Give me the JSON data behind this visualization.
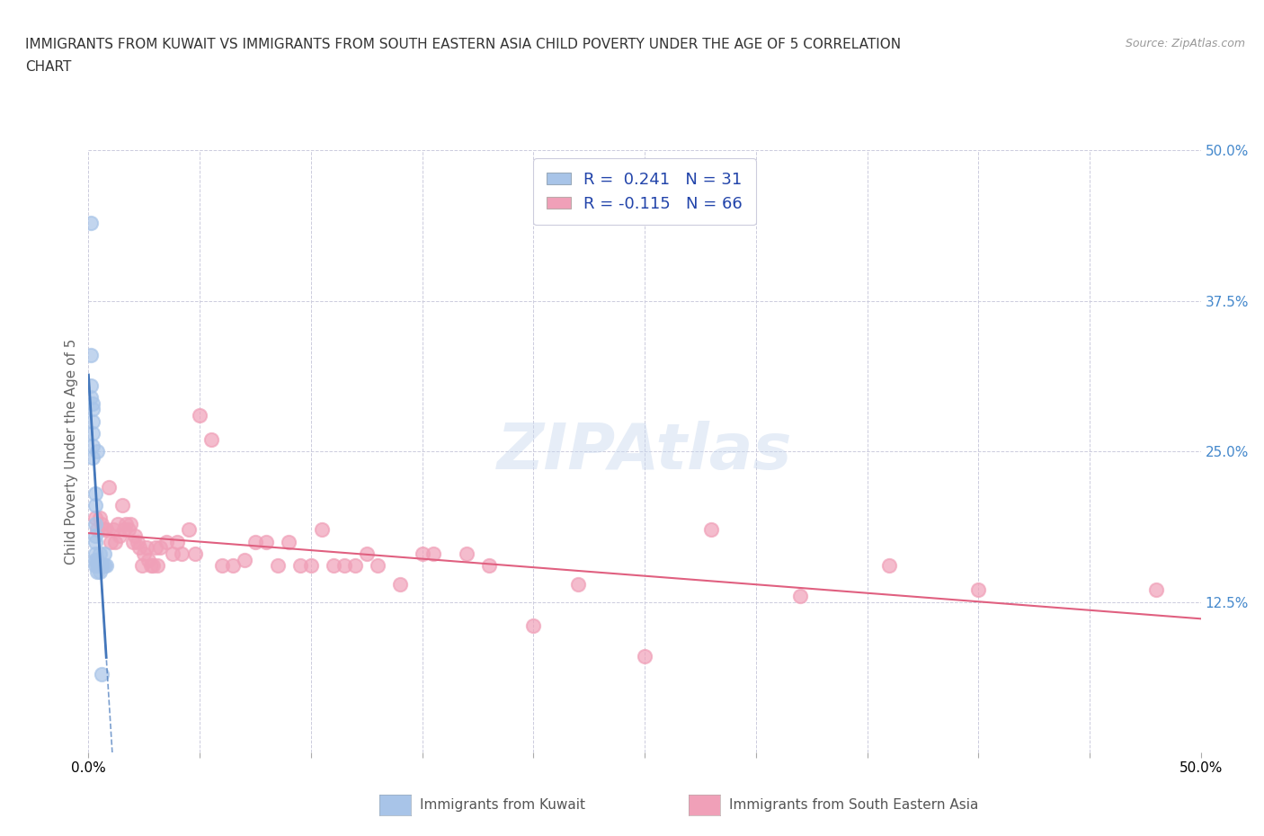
{
  "title_line1": "IMMIGRANTS FROM KUWAIT VS IMMIGRANTS FROM SOUTH EASTERN ASIA CHILD POVERTY UNDER THE AGE OF 5 CORRELATION",
  "title_line2": "CHART",
  "source": "Source: ZipAtlas.com",
  "ylabel": "Child Poverty Under the Age of 5",
  "xlim": [
    0.0,
    0.5
  ],
  "ylim": [
    0.0,
    0.5
  ],
  "r_kuwait": 0.241,
  "n_kuwait": 31,
  "r_sea": -0.115,
  "n_sea": 66,
  "color_kuwait": "#a8c4e8",
  "color_sea": "#f0a0b8",
  "trend_kuwait_color": "#4477bb",
  "trend_sea_color": "#e06080",
  "watermark": "ZIPAtlas",
  "kuwait_points": [
    [
      0.001,
      0.44
    ],
    [
      0.001,
      0.33
    ],
    [
      0.001,
      0.305
    ],
    [
      0.001,
      0.295
    ],
    [
      0.002,
      0.29
    ],
    [
      0.002,
      0.285
    ],
    [
      0.002,
      0.275
    ],
    [
      0.002,
      0.265
    ],
    [
      0.002,
      0.255
    ],
    [
      0.002,
      0.245
    ],
    [
      0.003,
      0.215
    ],
    [
      0.003,
      0.205
    ],
    [
      0.003,
      0.19
    ],
    [
      0.003,
      0.18
    ],
    [
      0.003,
      0.175
    ],
    [
      0.003,
      0.165
    ],
    [
      0.003,
      0.16
    ],
    [
      0.003,
      0.155
    ],
    [
      0.004,
      0.16
    ],
    [
      0.004,
      0.155
    ],
    [
      0.004,
      0.15
    ],
    [
      0.005,
      0.155
    ],
    [
      0.005,
      0.15
    ],
    [
      0.006,
      0.155
    ],
    [
      0.006,
      0.065
    ],
    [
      0.007,
      0.155
    ],
    [
      0.007,
      0.165
    ],
    [
      0.008,
      0.155
    ],
    [
      0.004,
      0.25
    ],
    [
      0.005,
      0.165
    ],
    [
      0.006,
      0.155
    ]
  ],
  "sea_points": [
    [
      0.003,
      0.195
    ],
    [
      0.004,
      0.185
    ],
    [
      0.005,
      0.195
    ],
    [
      0.006,
      0.19
    ],
    [
      0.007,
      0.185
    ],
    [
      0.008,
      0.185
    ],
    [
      0.009,
      0.22
    ],
    [
      0.01,
      0.175
    ],
    [
      0.011,
      0.185
    ],
    [
      0.012,
      0.175
    ],
    [
      0.013,
      0.19
    ],
    [
      0.014,
      0.18
    ],
    [
      0.015,
      0.205
    ],
    [
      0.016,
      0.185
    ],
    [
      0.017,
      0.19
    ],
    [
      0.018,
      0.185
    ],
    [
      0.019,
      0.19
    ],
    [
      0.02,
      0.175
    ],
    [
      0.021,
      0.18
    ],
    [
      0.022,
      0.175
    ],
    [
      0.023,
      0.17
    ],
    [
      0.024,
      0.155
    ],
    [
      0.025,
      0.165
    ],
    [
      0.026,
      0.17
    ],
    [
      0.027,
      0.16
    ],
    [
      0.028,
      0.155
    ],
    [
      0.029,
      0.155
    ],
    [
      0.03,
      0.17
    ],
    [
      0.031,
      0.155
    ],
    [
      0.032,
      0.17
    ],
    [
      0.035,
      0.175
    ],
    [
      0.038,
      0.165
    ],
    [
      0.04,
      0.175
    ],
    [
      0.042,
      0.165
    ],
    [
      0.045,
      0.185
    ],
    [
      0.048,
      0.165
    ],
    [
      0.05,
      0.28
    ],
    [
      0.055,
      0.26
    ],
    [
      0.06,
      0.155
    ],
    [
      0.065,
      0.155
    ],
    [
      0.07,
      0.16
    ],
    [
      0.075,
      0.175
    ],
    [
      0.08,
      0.175
    ],
    [
      0.085,
      0.155
    ],
    [
      0.09,
      0.175
    ],
    [
      0.095,
      0.155
    ],
    [
      0.1,
      0.155
    ],
    [
      0.105,
      0.185
    ],
    [
      0.11,
      0.155
    ],
    [
      0.115,
      0.155
    ],
    [
      0.12,
      0.155
    ],
    [
      0.125,
      0.165
    ],
    [
      0.13,
      0.155
    ],
    [
      0.14,
      0.14
    ],
    [
      0.15,
      0.165
    ],
    [
      0.155,
      0.165
    ],
    [
      0.17,
      0.165
    ],
    [
      0.18,
      0.155
    ],
    [
      0.2,
      0.105
    ],
    [
      0.22,
      0.14
    ],
    [
      0.25,
      0.08
    ],
    [
      0.28,
      0.185
    ],
    [
      0.32,
      0.13
    ],
    [
      0.36,
      0.155
    ],
    [
      0.4,
      0.135
    ],
    [
      0.48,
      0.135
    ]
  ]
}
